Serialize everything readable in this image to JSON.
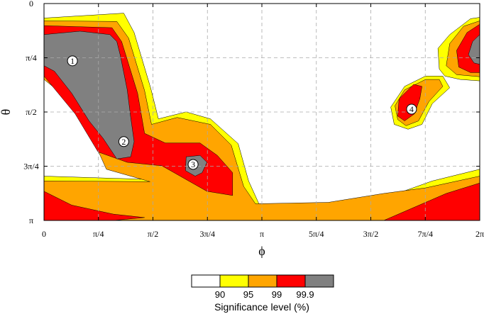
{
  "chart_data": {
    "type": "heatmap",
    "title": "",
    "xlabel": "ϕ",
    "ylabel": "θ",
    "x_range": [
      0,
      6.2832
    ],
    "y_range": [
      0,
      3.1416
    ],
    "y_inverted": true,
    "grid": true,
    "x_ticks": [
      {
        "value": 0,
        "label": "0"
      },
      {
        "value": 0.7854,
        "label": "π/4"
      },
      {
        "value": 1.5708,
        "label": "π/2"
      },
      {
        "value": 2.3562,
        "label": "3π/4"
      },
      {
        "value": 3.1416,
        "label": "π"
      },
      {
        "value": 3.927,
        "label": "5π/4"
      },
      {
        "value": 4.7124,
        "label": "3π/2"
      },
      {
        "value": 5.4978,
        "label": "7π/4"
      },
      {
        "value": 6.2832,
        "label": "2π"
      }
    ],
    "y_ticks": [
      {
        "value": 0,
        "label": "0"
      },
      {
        "value": 0.7854,
        "label": "π/4"
      },
      {
        "value": 1.5708,
        "label": "π/2"
      },
      {
        "value": 2.3562,
        "label": "3π/4"
      },
      {
        "value": 3.1416,
        "label": "π"
      }
    ],
    "levels": [
      {
        "threshold": 90,
        "label": "90",
        "color": "#ffff00"
      },
      {
        "threshold": 95,
        "label": "95",
        "color": "#ffa500"
      },
      {
        "threshold": 99,
        "label": "99",
        "color": "#ff0000"
      },
      {
        "threshold": 99.9,
        "label": "99.9",
        "color": "#808080"
      }
    ],
    "below_color": "#ffffff",
    "colorbar_label": "Significance level (%)",
    "annotations": [
      {
        "label": "1",
        "phi": 0.41,
        "theta": 0.83
      },
      {
        "label": "2",
        "phi": 1.15,
        "theta": 2.0
      },
      {
        "label": "3",
        "phi": 2.15,
        "theta": 2.33
      },
      {
        "label": "4",
        "phi": 5.3,
        "theta": 1.53
      }
    ],
    "regions": [
      {
        "level": 90,
        "name": "left-arc",
        "points": [
          [
            0,
            0.21
          ],
          [
            1.15,
            0.14
          ],
          [
            1.3,
            0.42
          ],
          [
            1.54,
            1.23
          ],
          [
            1.65,
            1.67
          ],
          [
            2.05,
            1.57
          ],
          [
            2.4,
            1.67
          ],
          [
            2.8,
            2.03
          ],
          [
            2.95,
            2.57
          ],
          [
            3.1,
            2.9
          ],
          [
            4.0,
            2.9
          ],
          [
            4.9,
            2.82
          ],
          [
            5.6,
            2.57
          ],
          [
            6.2832,
            2.4
          ],
          [
            6.2832,
            3.1416
          ],
          [
            0,
            3.1416
          ],
          [
            0,
            2.5
          ],
          [
            1.6,
            2.55
          ],
          [
            1.0,
            2.3
          ],
          [
            0.7,
            1.9
          ],
          [
            0.48,
            1.45
          ],
          [
            0,
            1.05
          ]
        ]
      },
      {
        "level": 95,
        "name": "left-arc",
        "points": [
          [
            0,
            0.25
          ],
          [
            1.05,
            0.26
          ],
          [
            1.22,
            0.5
          ],
          [
            1.45,
            1.26
          ],
          [
            1.55,
            1.75
          ],
          [
            1.92,
            1.65
          ],
          [
            2.4,
            1.75
          ],
          [
            2.7,
            2.05
          ],
          [
            2.88,
            2.65
          ],
          [
            3.05,
            2.9
          ],
          [
            4.1,
            2.88
          ],
          [
            4.9,
            2.75
          ],
          [
            5.5,
            2.67
          ],
          [
            6.2832,
            2.5
          ],
          [
            6.2832,
            3.1416
          ],
          [
            0,
            3.1416
          ],
          [
            0,
            2.57
          ],
          [
            1.53,
            2.58
          ],
          [
            0.9,
            2.4
          ],
          [
            0.72,
            2.0
          ],
          [
            0.5,
            1.5
          ],
          [
            0,
            1.1
          ]
        ]
      },
      {
        "level": 99,
        "name": "left-arc",
        "points": [
          [
            0,
            0.32
          ],
          [
            0.98,
            0.35
          ],
          [
            1.12,
            0.55
          ],
          [
            1.35,
            1.3
          ],
          [
            1.45,
            1.88
          ],
          [
            1.75,
            2.02
          ],
          [
            2.25,
            2.02
          ],
          [
            2.5,
            2.2
          ],
          [
            2.72,
            2.45
          ],
          [
            2.72,
            2.78
          ],
          [
            2.35,
            2.72
          ],
          [
            1.7,
            2.35
          ],
          [
            1.2,
            2.3
          ],
          [
            0.78,
            2.15
          ],
          [
            0.45,
            1.6
          ],
          [
            0,
            1.05
          ]
        ]
      },
      {
        "level": 99,
        "name": "left-bottom-strip",
        "points": [
          [
            0,
            2.72
          ],
          [
            0.4,
            2.92
          ],
          [
            1.0,
            3.05
          ],
          [
            1.45,
            3.1
          ],
          [
            1.0,
            3.1416
          ],
          [
            0,
            3.1416
          ]
        ]
      },
      {
        "level": 99,
        "name": "right-bottom-strip",
        "points": [
          [
            4.9,
            3.1416
          ],
          [
            5.8,
            2.75
          ],
          [
            6.2832,
            2.6
          ],
          [
            6.2832,
            3.1416
          ]
        ]
      },
      {
        "level": 99.9,
        "name": "region-1-2",
        "points": [
          [
            0,
            0.45
          ],
          [
            0.52,
            0.4
          ],
          [
            0.95,
            0.45
          ],
          [
            1.05,
            0.55
          ],
          [
            1.1,
            0.75
          ],
          [
            1.2,
            1.25
          ],
          [
            1.25,
            1.65
          ],
          [
            1.3,
            2.0
          ],
          [
            1.25,
            2.22
          ],
          [
            1.05,
            2.25
          ],
          [
            0.85,
            1.95
          ],
          [
            0.65,
            1.7
          ],
          [
            0.4,
            1.3
          ],
          [
            0.15,
            0.98
          ],
          [
            0,
            0.9
          ]
        ]
      },
      {
        "level": 99.9,
        "name": "region-3",
        "points": [
          [
            2.05,
            2.22
          ],
          [
            2.25,
            2.2
          ],
          [
            2.35,
            2.3
          ],
          [
            2.28,
            2.45
          ],
          [
            2.18,
            2.5
          ],
          [
            2.04,
            2.42
          ]
        ]
      },
      {
        "level": 90,
        "name": "region-4",
        "points": [
          [
            5.5,
            1.05
          ],
          [
            5.75,
            1.05
          ],
          [
            5.85,
            1.22
          ],
          [
            5.6,
            1.45
          ],
          [
            5.45,
            1.75
          ],
          [
            5.25,
            1.82
          ],
          [
            5.05,
            1.75
          ],
          [
            5.0,
            1.5
          ],
          [
            5.2,
            1.2
          ]
        ]
      },
      {
        "level": 95,
        "name": "region-4",
        "points": [
          [
            5.5,
            1.1
          ],
          [
            5.7,
            1.1
          ],
          [
            5.75,
            1.2
          ],
          [
            5.55,
            1.42
          ],
          [
            5.4,
            1.7
          ],
          [
            5.22,
            1.77
          ],
          [
            5.1,
            1.68
          ],
          [
            5.06,
            1.48
          ],
          [
            5.2,
            1.25
          ]
        ]
      },
      {
        "level": 99,
        "name": "region-4",
        "points": [
          [
            5.33,
            1.17
          ],
          [
            5.45,
            1.2
          ],
          [
            5.42,
            1.38
          ],
          [
            5.34,
            1.6
          ],
          [
            5.2,
            1.7
          ],
          [
            5.1,
            1.63
          ],
          [
            5.12,
            1.38
          ]
        ]
      },
      {
        "level": 90,
        "name": "right-top",
        "points": [
          [
            6.2832,
            0.2
          ],
          [
            6.15,
            0.22
          ],
          [
            5.85,
            0.45
          ],
          [
            5.68,
            0.65
          ],
          [
            5.7,
            0.95
          ],
          [
            5.78,
            1.05
          ],
          [
            6.0,
            1.1
          ],
          [
            6.2832,
            1.12
          ]
        ]
      },
      {
        "level": 95,
        "name": "right-top",
        "points": [
          [
            6.2832,
            0.25
          ],
          [
            6.05,
            0.33
          ],
          [
            5.85,
            0.58
          ],
          [
            5.8,
            0.9
          ],
          [
            5.95,
            1.03
          ],
          [
            6.2832,
            1.06
          ]
        ]
      },
      {
        "level": 99,
        "name": "right-top",
        "points": [
          [
            6.2832,
            0.3
          ],
          [
            6.1,
            0.42
          ],
          [
            5.95,
            0.68
          ],
          [
            5.98,
            0.92
          ],
          [
            6.15,
            1.0
          ],
          [
            6.2832,
            1.0
          ]
        ]
      },
      {
        "level": 99.9,
        "name": "right-top",
        "points": [
          [
            6.2832,
            0.45
          ],
          [
            6.18,
            0.55
          ],
          [
            6.12,
            0.74
          ],
          [
            6.2,
            0.86
          ],
          [
            6.2832,
            0.88
          ]
        ]
      }
    ]
  }
}
